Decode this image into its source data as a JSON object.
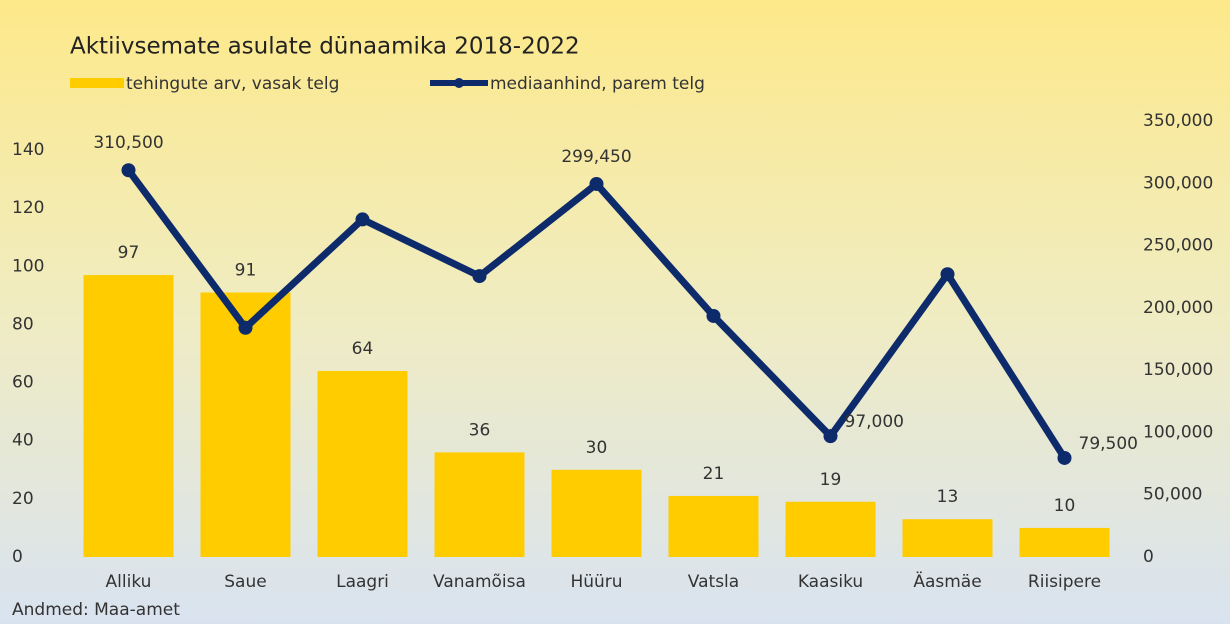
{
  "chart_data": {
    "type": "bar-line",
    "title": "Aktiivsemate asulate dünaamika 2018-2022",
    "source": "Andmed: Maa-amet",
    "categories": [
      "Alliku",
      "Saue",
      "Laagri",
      "Vanamõisa",
      "Hüüru",
      "Vatsla",
      "Kaasiku",
      "Äasmäe",
      "Riisipere"
    ],
    "series": [
      {
        "name": "tehingute arv, vasak telg",
        "type": "bar",
        "axis": "y",
        "color": "#ffcc00",
        "values": [
          97,
          91,
          64,
          36,
          30,
          21,
          19,
          13,
          10
        ]
      },
      {
        "name": "mediaanhind, parem telg",
        "type": "line",
        "axis": "y2",
        "color": "#0d2b6b",
        "values": [
          310500,
          184000,
          271000,
          225500,
          299450,
          193500,
          97000,
          227000,
          79500
        ],
        "value_labels": [
          "310,500",
          null,
          null,
          null,
          "299,450",
          null,
          "97,000",
          null,
          "79,500"
        ]
      }
    ],
    "ylim": [
      0,
      150
    ],
    "yticks": [
      0,
      20,
      40,
      60,
      80,
      100,
      120,
      140
    ],
    "y2lim": [
      0,
      350000
    ],
    "y2ticks": [
      0,
      {
        "value": 50000,
        "label": "50,000"
      },
      {
        "value": 100000,
        "label": "100,000"
      },
      {
        "value": 150000,
        "label": "150,000"
      },
      {
        "value": 200000,
        "label": "200,000"
      },
      {
        "value": 250000,
        "label": "250,000"
      },
      {
        "value": 300000,
        "label": "300,000"
      },
      {
        "value": 350000,
        "label": "350,000"
      }
    ],
    "grid": false,
    "legend": "top"
  }
}
